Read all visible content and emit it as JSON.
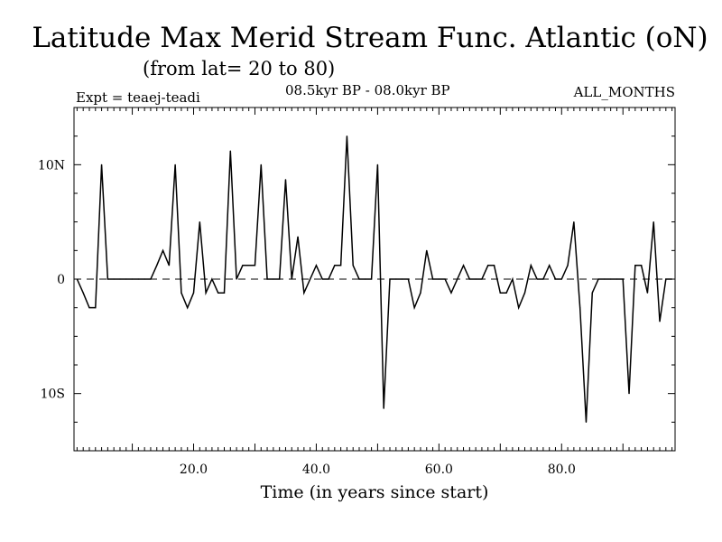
{
  "chart_data": {
    "type": "line",
    "title": "Latitude Max Merid Stream Func. Atlantic (oN)",
    "subtitle": "(from lat= 20 to 80)",
    "experiment": "Expt = teaej-teadi",
    "period": "08.5kyr BP - 08.0kyr BP",
    "months": "ALL_MONTHS",
    "xlabel": "Time (in years since start)",
    "ylabel": "",
    "xlim": [
      0.5,
      98.5
    ],
    "ylim": [
      -15,
      15
    ],
    "x_ticks": [
      {
        "value": 20,
        "label": "20.0"
      },
      {
        "value": 40,
        "label": "40.0"
      },
      {
        "value": 60,
        "label": "60.0"
      },
      {
        "value": 80,
        "label": "80.0"
      }
    ],
    "y_ticks": [
      {
        "value": 10,
        "label": "10N"
      },
      {
        "value": 0,
        "label": "0"
      },
      {
        "value": -10,
        "label": "10S"
      }
    ],
    "zero_line": "dashed",
    "x": [
      1,
      2,
      3,
      4,
      5,
      6,
      7,
      8,
      9,
      10,
      11,
      12,
      13,
      14,
      15,
      16,
      17,
      18,
      19,
      20,
      21,
      22,
      23,
      24,
      25,
      26,
      27,
      28,
      29,
      30,
      31,
      32,
      33,
      34,
      35,
      36,
      37,
      38,
      39,
      40,
      41,
      42,
      43,
      44,
      45,
      46,
      47,
      48,
      49,
      50,
      51,
      52,
      53,
      54,
      55,
      56,
      57,
      58,
      59,
      60,
      61,
      62,
      63,
      64,
      65,
      66,
      67,
      68,
      69,
      70,
      71,
      72,
      73,
      74,
      75,
      76,
      77,
      78,
      79,
      80,
      81,
      82,
      83,
      84,
      85,
      86,
      87,
      88,
      89,
      90,
      91,
      92,
      93,
      94,
      95,
      96,
      97,
      98
    ],
    "values": [
      0,
      -1.2,
      -2.5,
      -2.5,
      10,
      0,
      0,
      0,
      0,
      0,
      0,
      0,
      0,
      1.2,
      2.5,
      1.2,
      10,
      -1.2,
      -2.5,
      -1.2,
      5,
      -1.2,
      0,
      -1.2,
      -1.2,
      11.2,
      0,
      1.2,
      1.2,
      1.2,
      10,
      0,
      0,
      0,
      8.7,
      0,
      3.7,
      -1.2,
      0,
      1.2,
      0,
      0,
      1.2,
      1.2,
      12.5,
      1.2,
      0,
      0,
      0,
      10,
      -11.3,
      0,
      0,
      0,
      0,
      -2.5,
      -1.2,
      2.5,
      0,
      0,
      0,
      -1.2,
      0,
      1.2,
      0,
      0,
      0,
      1.2,
      1.2,
      -1.2,
      -1.2,
      0,
      -2.5,
      -1.2,
      1.2,
      0,
      0,
      1.2,
      0,
      0,
      1.2,
      5,
      -2.5,
      -12.5,
      -1.2,
      0,
      0,
      0,
      0,
      0,
      -10,
      1.2,
      1.2,
      -1.2,
      5,
      -3.7,
      0,
      0
    ]
  }
}
